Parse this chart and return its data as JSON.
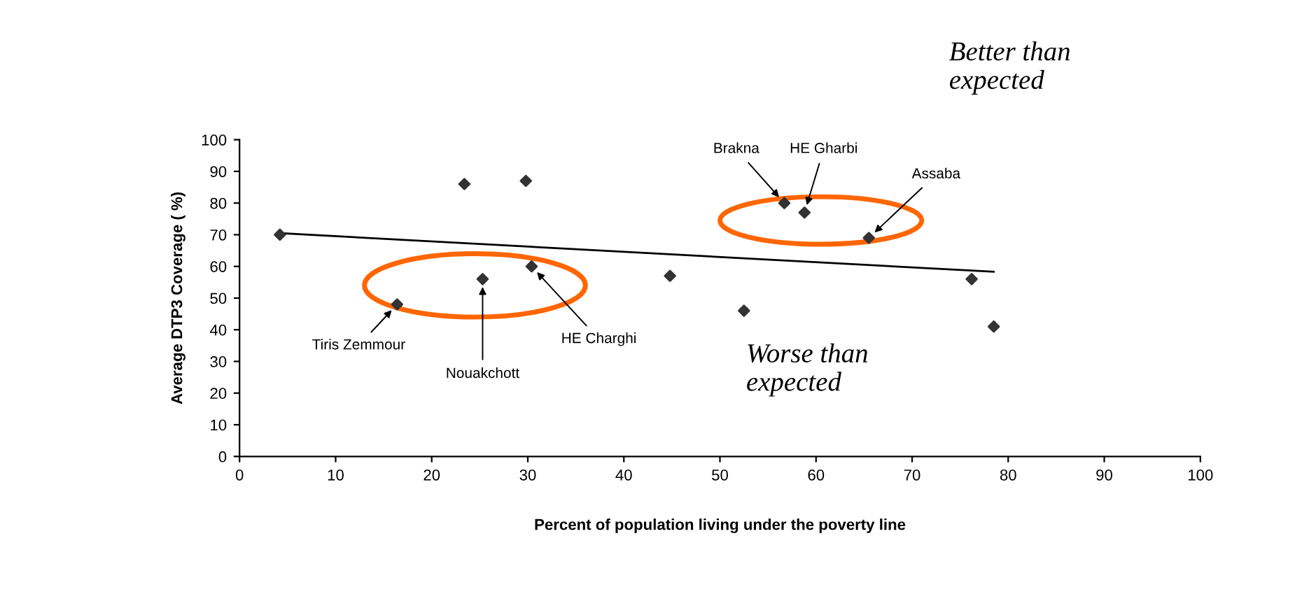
{
  "chart_data": {
    "type": "scatter",
    "xlabel": "Percent of population living under the poverty line",
    "ylabel": "Average DTP3 Coverage ( %)",
    "xlim": [
      0,
      100
    ],
    "ylim": [
      0,
      100
    ],
    "xticks": [
      0,
      10,
      20,
      30,
      40,
      50,
      60,
      70,
      80,
      90,
      100
    ],
    "yticks": [
      0,
      10,
      20,
      30,
      40,
      50,
      60,
      70,
      80,
      90,
      100
    ],
    "grid": false,
    "legend": false,
    "marker": "diamond",
    "series": [
      {
        "type": "scatter",
        "color": "#333333",
        "x": [
          4.2,
          16.4,
          23.4,
          25.3,
          29.8,
          30.4,
          44.8,
          52.5,
          56.7,
          58.8,
          65.5,
          76.2,
          78.5
        ],
        "values": [
          70,
          48,
          86,
          56,
          87,
          60,
          57,
          46,
          80,
          77,
          69,
          56,
          41
        ]
      },
      {
        "type": "line",
        "color": "#000000",
        "x": [
          4.2,
          78.5
        ],
        "values": [
          70.5,
          58.3
        ],
        "line_style": "solid",
        "marker": "none"
      }
    ],
    "annotations": [
      "Better than expected",
      "Worse than expected",
      {
        "text": "Tiris Zemmour",
        "x": 16.4,
        "y": 48
      },
      {
        "text": "Nouakchott",
        "x": 25.3,
        "y": 56
      },
      {
        "text": "HE Charghi",
        "x": 30.4,
        "y": 60
      },
      {
        "text": "Brakna",
        "x": 56.7,
        "y": 80
      },
      {
        "text": "HE Gharbi",
        "x": 58.8,
        "y": 77
      },
      {
        "text": "Assaba",
        "x": 65.5,
        "y": 69
      }
    ]
  }
}
